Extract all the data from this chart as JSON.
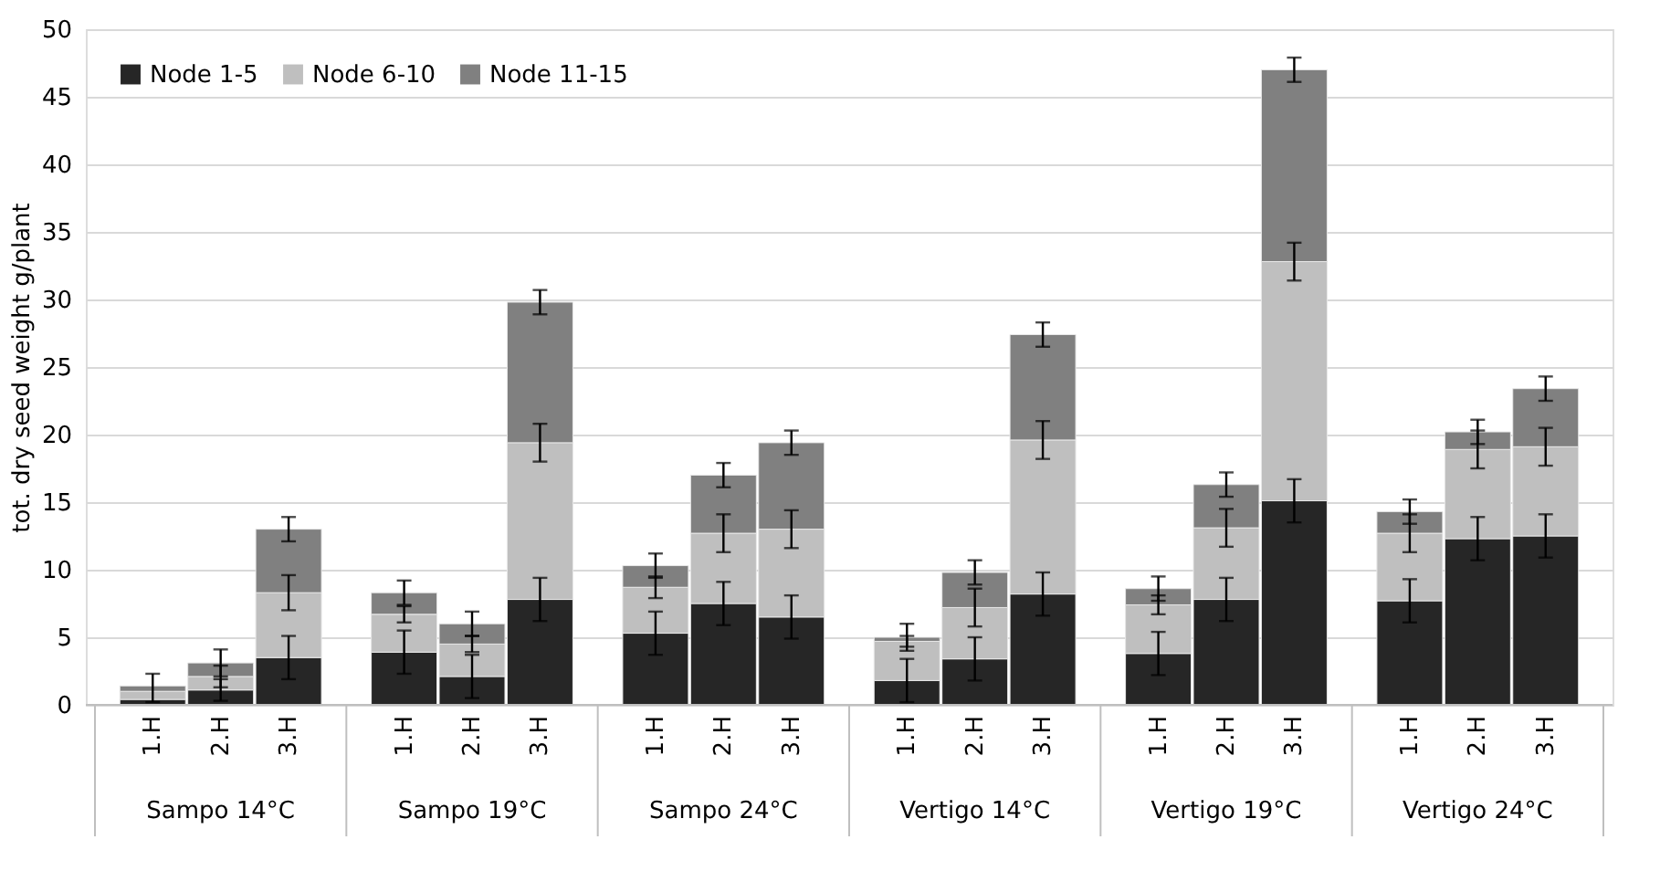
{
  "chart_data": {
    "type": "bar",
    "stacked": true,
    "ylabel": "tot. dry seed weight g/plant",
    "categories": [
      "1.H",
      "2.H",
      "3.H",
      "1.H",
      "2.H",
      "3.H",
      "1.H",
      "2.H",
      "3.H",
      "1.H",
      "2.H",
      "3.H",
      "1.H",
      "2.H",
      "3.H",
      "1.H",
      "2.H",
      "3.H"
    ],
    "annotations": [
      "Sampo 14°C",
      "Sampo 19°C",
      "Sampo 24°C",
      "Vertigo 14°C",
      "Vertigo 19°C",
      "Vertigo 24°C"
    ],
    "series": [
      {
        "name": "Node 1-5",
        "color": "#262626",
        "values": [
          0.4,
          1.1,
          3.5,
          3.9,
          2.1,
          7.8,
          5.3,
          7.5,
          6.5,
          1.8,
          3.4,
          8.2,
          3.8,
          7.8,
          15.1,
          7.7,
          12.3,
          12.5
        ],
        "errors": [
          null,
          0.8,
          1.6,
          1.6,
          1.6,
          1.6,
          1.6,
          1.6,
          1.6,
          1.6,
          1.6,
          1.6,
          1.6,
          1.6,
          1.6,
          1.6,
          1.6,
          1.6
        ]
      },
      {
        "name": "Node 6-10",
        "color": "#bfbfbf",
        "values": [
          0.6,
          1.0,
          4.8,
          2.8,
          2.4,
          11.6,
          3.4,
          5.2,
          6.5,
          2.9,
          3.8,
          11.4,
          3.6,
          5.3,
          17.7,
          5.0,
          6.6,
          6.6
        ],
        "errors": [
          null,
          0.8,
          1.3,
          0.6,
          0.6,
          1.4,
          0.8,
          1.4,
          1.4,
          0.4,
          1.4,
          1.4,
          0.7,
          1.4,
          1.4,
          1.4,
          1.4,
          1.4
        ]
      },
      {
        "name": "Node 11-15",
        "color": "#808080",
        "values": [
          0.4,
          1.0,
          4.7,
          1.6,
          1.5,
          10.4,
          1.6,
          4.3,
          6.4,
          0.3,
          2.6,
          7.8,
          1.2,
          3.2,
          14.2,
          1.6,
          1.3,
          4.3
        ],
        "errors": [
          [
            0.2,
            2.3
          ],
          1.0,
          0.9,
          0.9,
          0.9,
          0.9,
          0.9,
          0.9,
          0.9,
          1.0,
          0.9,
          0.9,
          0.9,
          0.9,
          0.9,
          0.9,
          0.9,
          0.9
        ]
      }
    ],
    "ylim": [
      0,
      50
    ],
    "yticks": [
      0,
      5,
      10,
      15,
      20,
      25,
      30,
      35,
      40,
      45,
      50
    ],
    "grid": "y",
    "legend": "top left"
  }
}
